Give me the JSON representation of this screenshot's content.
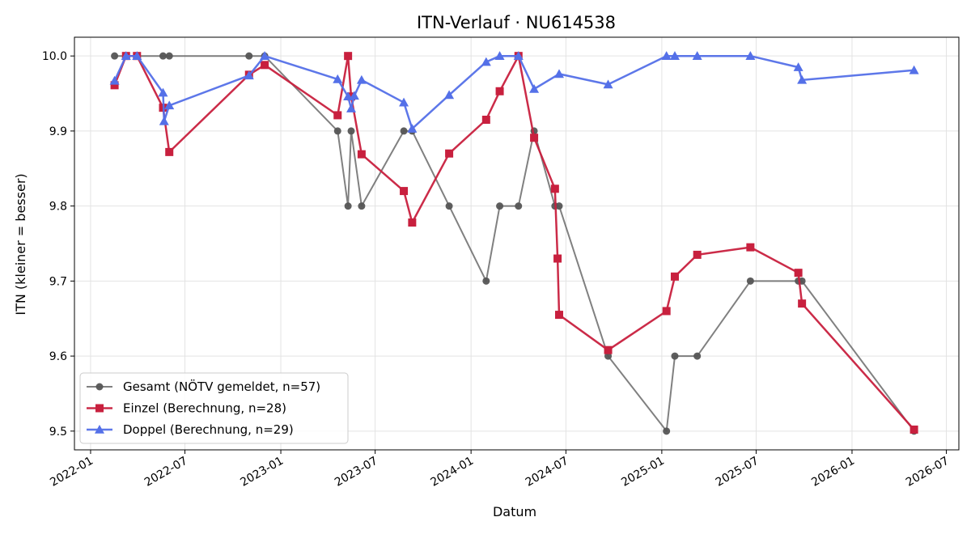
{
  "chart_data": {
    "type": "line",
    "title": "ITN-Verlauf · NU614538",
    "xlabel": "Datum",
    "ylabel": "ITN  (kleiner = besser)",
    "x_type": "date",
    "xlim": [
      "2021-12-01",
      "2026-07-25"
    ],
    "ylim": [
      9.475,
      10.025
    ],
    "x_ticks": [
      "2022-01",
      "2022-07",
      "2023-01",
      "2023-07",
      "2024-01",
      "2024-07",
      "2025-01",
      "2025-07",
      "2026-01",
      "2026-07"
    ],
    "y_ticks": [
      9.5,
      9.6,
      9.7,
      9.8,
      9.9,
      10.0
    ],
    "grid": true,
    "legend_position": "lower-left",
    "series": [
      {
        "name": "Gesamt (NÖTV gemeldet, n=57)",
        "color": "#555555",
        "marker": "circle",
        "points": [
          [
            "2022-02-16",
            10.0
          ],
          [
            "2022-03-10",
            10.0
          ],
          [
            "2022-03-31",
            10.0
          ],
          [
            "2022-05-20",
            10.0
          ],
          [
            "2022-06-01",
            10.0
          ],
          [
            "2022-11-01",
            10.0
          ],
          [
            "2022-12-01",
            10.0
          ],
          [
            "2023-04-20",
            9.9
          ],
          [
            "2023-05-10",
            9.8
          ],
          [
            "2023-05-16",
            9.9
          ],
          [
            "2023-06-05",
            9.8
          ],
          [
            "2023-08-25",
            9.9
          ],
          [
            "2023-09-10",
            9.9
          ],
          [
            "2023-11-20",
            9.8
          ],
          [
            "2024-01-30",
            9.7
          ],
          [
            "2024-02-25",
            9.8
          ],
          [
            "2024-04-01",
            9.8
          ],
          [
            "2024-05-01",
            9.9
          ],
          [
            "2024-06-10",
            9.8
          ],
          [
            "2024-06-18",
            9.8
          ],
          [
            "2024-09-20",
            9.6
          ],
          [
            "2025-01-10",
            9.5
          ],
          [
            "2025-01-26",
            9.6
          ],
          [
            "2025-03-10",
            9.6
          ],
          [
            "2025-06-20",
            9.7
          ],
          [
            "2025-09-20",
            9.7
          ],
          [
            "2025-09-27",
            9.7
          ],
          [
            "2026-04-30",
            9.5
          ]
        ]
      },
      {
        "name": "Einzel (Berechnung, n=28)",
        "color": "#c8203e",
        "marker": "square",
        "points": [
          [
            "2022-02-16",
            9.961
          ],
          [
            "2022-03-10",
            10.0
          ],
          [
            "2022-03-31",
            10.0
          ],
          [
            "2022-05-20",
            9.931
          ],
          [
            "2022-06-01",
            9.872
          ],
          [
            "2022-11-01",
            9.975
          ],
          [
            "2022-12-01",
            9.988
          ],
          [
            "2023-04-20",
            9.921
          ],
          [
            "2023-05-10",
            10.0
          ],
          [
            "2023-05-16",
            9.946
          ],
          [
            "2023-06-05",
            9.869
          ],
          [
            "2023-08-25",
            9.82
          ],
          [
            "2023-09-10",
            9.778
          ],
          [
            "2023-11-20",
            9.87
          ],
          [
            "2024-01-30",
            9.915
          ],
          [
            "2024-02-25",
            9.953
          ],
          [
            "2024-04-01",
            10.0
          ],
          [
            "2024-05-01",
            9.891
          ],
          [
            "2024-06-10",
            9.823
          ],
          [
            "2024-06-15",
            9.73
          ],
          [
            "2024-06-18",
            9.655
          ],
          [
            "2024-09-20",
            9.608
          ],
          [
            "2025-01-10",
            9.66
          ],
          [
            "2025-01-26",
            9.706
          ],
          [
            "2025-03-10",
            9.735
          ],
          [
            "2025-06-20",
            9.745
          ],
          [
            "2025-09-20",
            9.711
          ],
          [
            "2025-09-27",
            9.67
          ],
          [
            "2026-04-30",
            9.502
          ]
        ]
      },
      {
        "name": "Doppel (Berechnung, n=29)",
        "color": "#5470e8",
        "marker": "triangle",
        "points": [
          [
            "2022-02-16",
            9.967
          ],
          [
            "2022-03-10",
            10.0
          ],
          [
            "2022-03-31",
            10.0
          ],
          [
            "2022-05-20",
            9.951
          ],
          [
            "2022-05-22",
            9.913
          ],
          [
            "2022-06-01",
            9.934
          ],
          [
            "2022-11-01",
            9.974
          ],
          [
            "2022-12-01",
            10.0
          ],
          [
            "2023-04-20",
            9.969
          ],
          [
            "2023-05-10",
            9.946
          ],
          [
            "2023-05-16",
            9.93
          ],
          [
            "2023-05-22",
            9.947
          ],
          [
            "2023-06-05",
            9.968
          ],
          [
            "2023-08-25",
            9.938
          ],
          [
            "2023-09-10",
            9.903
          ],
          [
            "2023-11-20",
            9.948
          ],
          [
            "2024-01-30",
            9.992
          ],
          [
            "2024-02-25",
            10.0
          ],
          [
            "2024-04-01",
            10.0
          ],
          [
            "2024-05-01",
            9.956
          ],
          [
            "2024-06-18",
            9.976
          ],
          [
            "2024-09-20",
            9.962
          ],
          [
            "2025-01-10",
            10.0
          ],
          [
            "2025-01-26",
            10.0
          ],
          [
            "2025-03-10",
            10.0
          ],
          [
            "2025-06-20",
            10.0
          ],
          [
            "2025-09-20",
            9.985
          ],
          [
            "2025-09-27",
            9.968
          ],
          [
            "2026-04-30",
            9.981
          ]
        ]
      }
    ]
  }
}
